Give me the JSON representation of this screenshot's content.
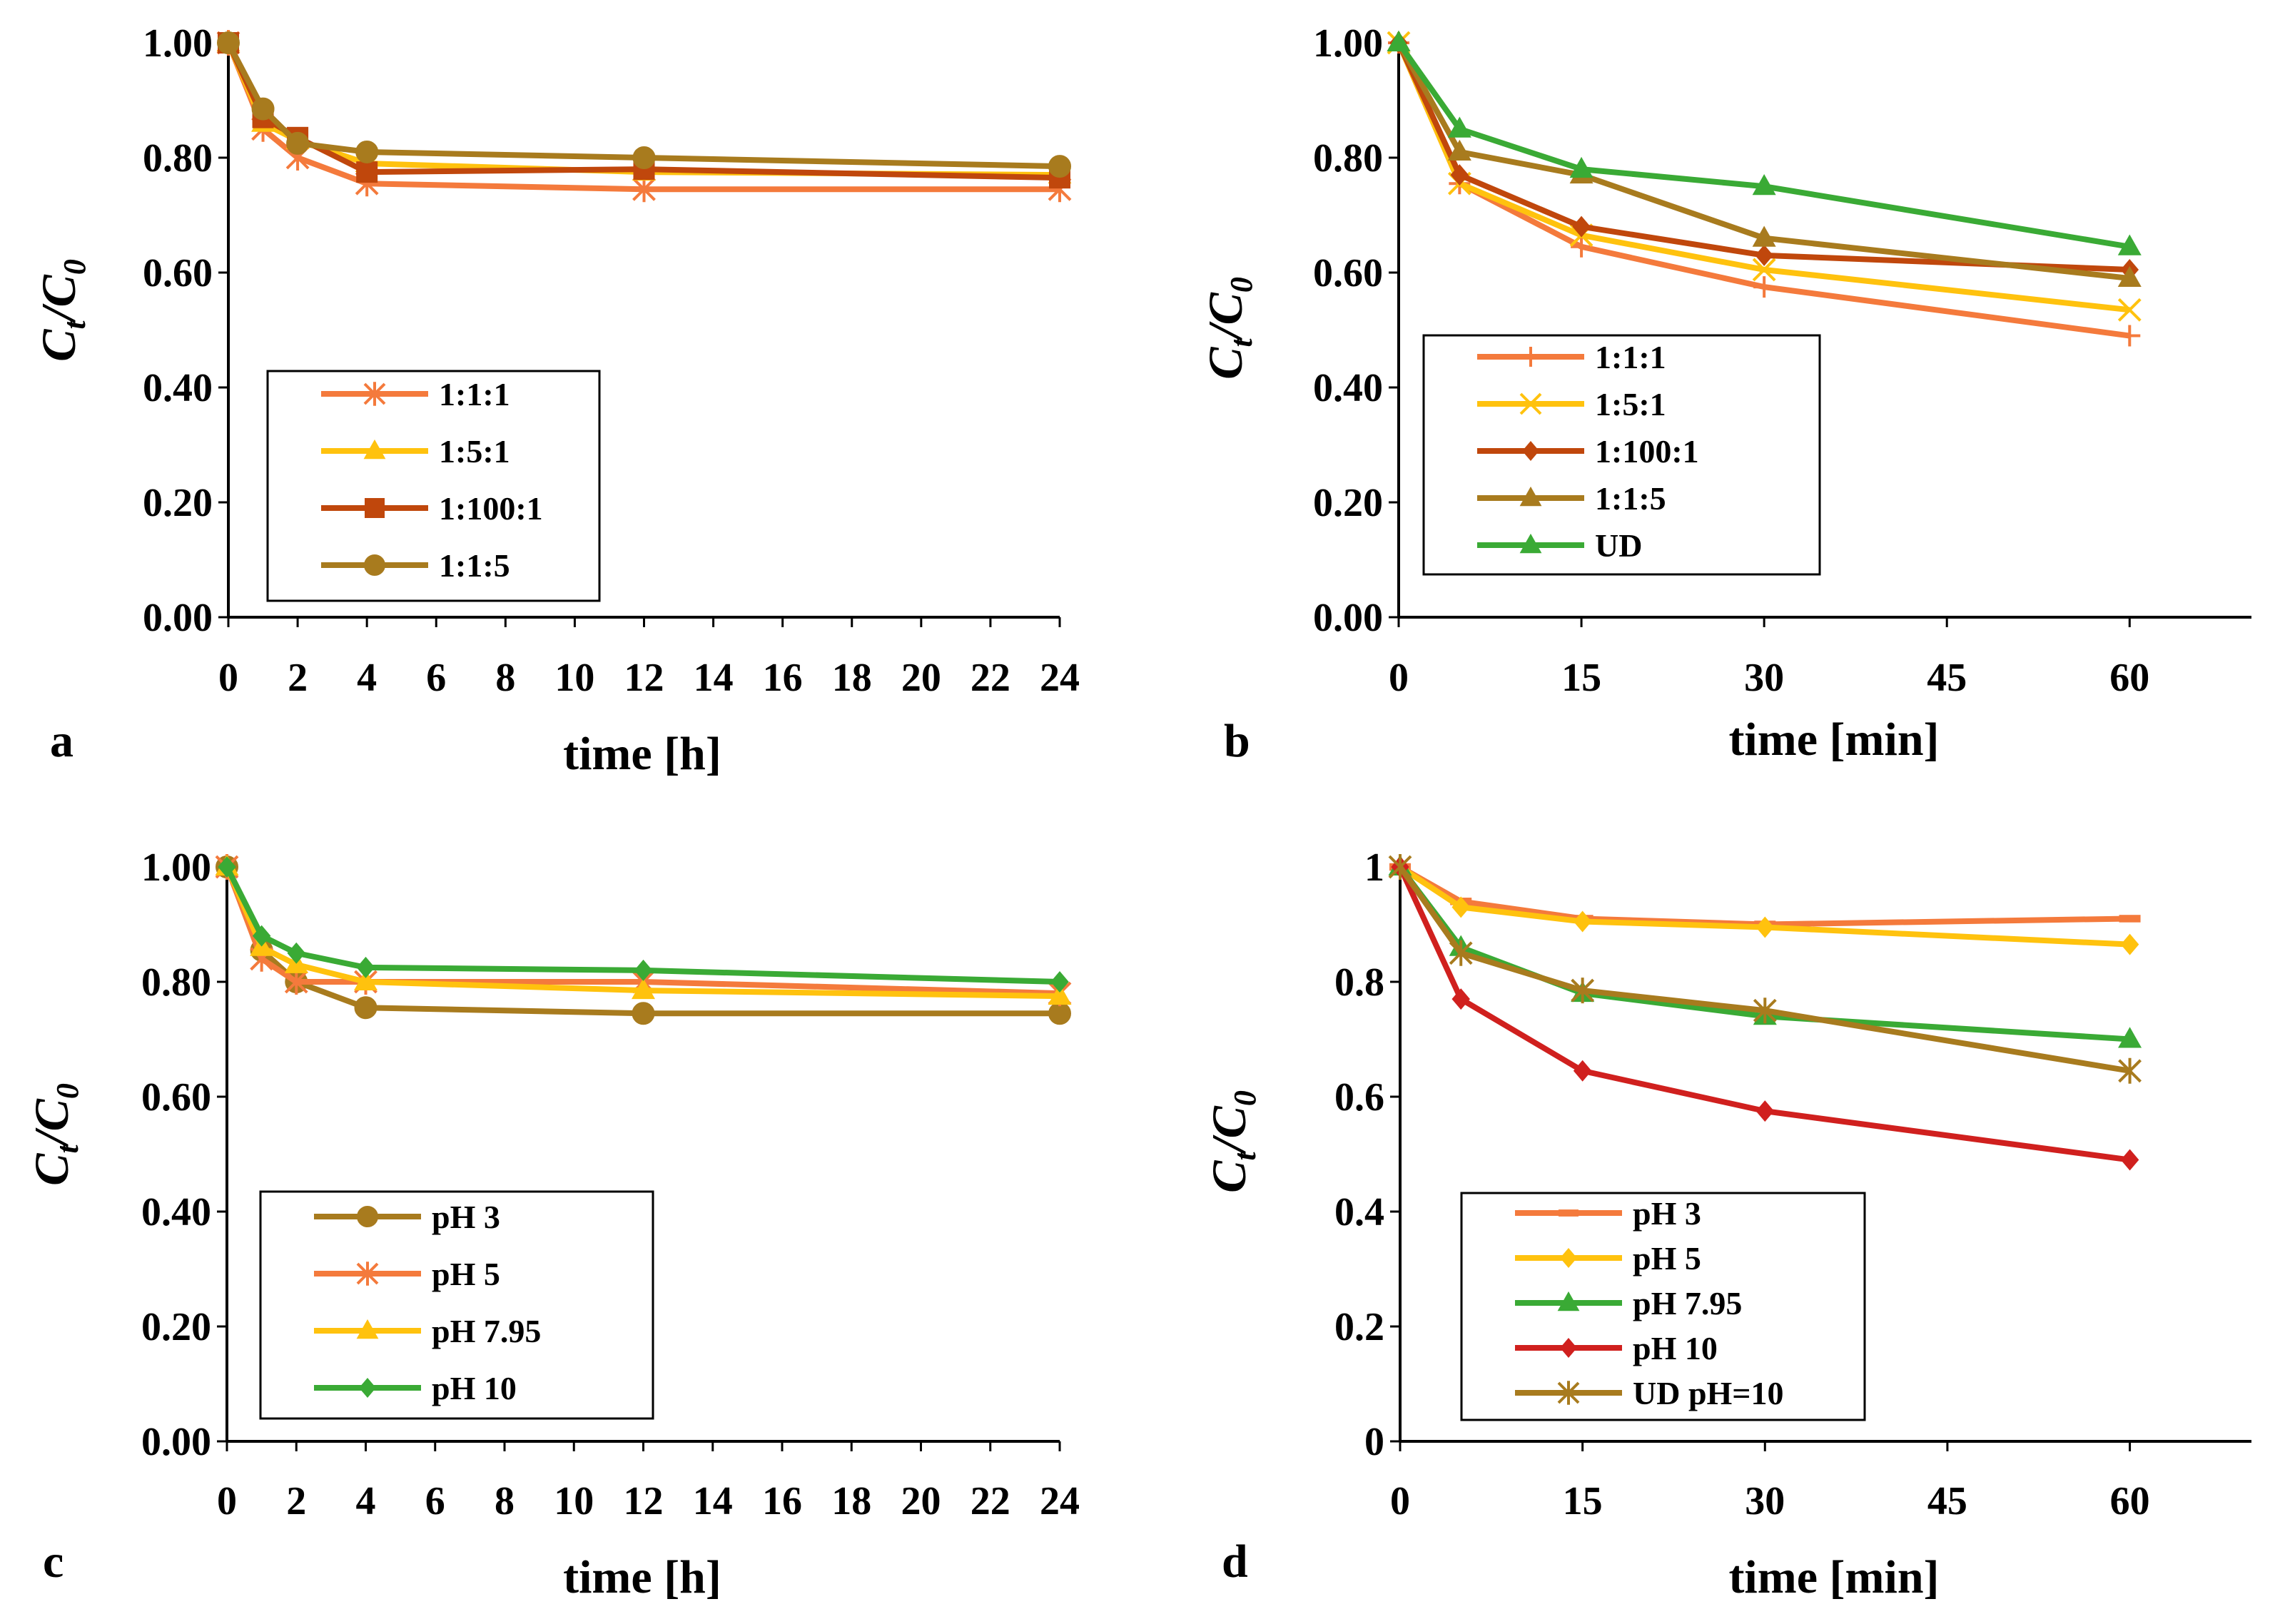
{
  "chart_data": [
    {
      "id": "a",
      "type": "line",
      "panel_label": "a",
      "xlabel": "time [h]",
      "ylabel": "C",
      "ylabel_t_sub": "t",
      "ylabel_den": "C",
      "ylabel_0_sub": "0",
      "xlim": [
        0,
        24
      ],
      "ylim": [
        0,
        1
      ],
      "xticks": [
        0,
        2,
        4,
        6,
        8,
        10,
        12,
        14,
        16,
        18,
        20,
        22,
        24
      ],
      "xtick_labels": [
        "0",
        "2",
        "4",
        "6",
        "8",
        "10",
        "12",
        "14",
        "16",
        "18",
        "20",
        "22",
        "24"
      ],
      "yticks": [
        0,
        0.2,
        0.4,
        0.6,
        0.8,
        1.0
      ],
      "ytick_labels": [
        "0.00",
        "0.20",
        "0.40",
        "0.60",
        "0.80",
        "1.00"
      ],
      "legend_position": "lower-left",
      "series": [
        {
          "name": "1:1:1",
          "color": "#f47a3c",
          "marker": "asterisk",
          "x": [
            0,
            1,
            2,
            4,
            12,
            24
          ],
          "values": [
            1.0,
            0.85,
            0.8,
            0.755,
            0.745,
            0.745
          ]
        },
        {
          "name": "1:5:1",
          "color": "#ffc20e",
          "marker": "triangle",
          "x": [
            0,
            1,
            2,
            4,
            12,
            24
          ],
          "values": [
            1.0,
            0.86,
            0.83,
            0.79,
            0.775,
            0.77
          ]
        },
        {
          "name": "1:100:1",
          "color": "#c0470c",
          "marker": "square",
          "x": [
            0,
            1,
            2,
            4,
            12,
            24
          ],
          "values": [
            1.0,
            0.87,
            0.835,
            0.775,
            0.78,
            0.765
          ]
        },
        {
          "name": "1:1:5",
          "color": "#a87b1e",
          "marker": "circle",
          "x": [
            0,
            1,
            2,
            4,
            12,
            24
          ],
          "values": [
            1.0,
            0.885,
            0.825,
            0.81,
            0.8,
            0.785
          ]
        }
      ]
    },
    {
      "id": "b",
      "type": "line",
      "panel_label": "b",
      "xlabel": "time [min]",
      "ylabel": "C",
      "ylabel_t_sub": "t",
      "ylabel_den": "C",
      "ylabel_0_sub": "0",
      "xlim": [
        0,
        70
      ],
      "ylim": [
        0,
        1
      ],
      "xticks": [
        0,
        15,
        30,
        45,
        60
      ],
      "xtick_labels": [
        "0",
        "15",
        "30",
        "45",
        "60"
      ],
      "yticks": [
        0,
        0.2,
        0.4,
        0.6,
        0.8,
        1.0
      ],
      "ytick_labels": [
        "0.00",
        "0.20",
        "0.40",
        "0.60",
        "0.80",
        "1.00"
      ],
      "legend_position": "lower-left",
      "series": [
        {
          "name": "1:1:1",
          "color": "#f47a3c",
          "marker": "plus",
          "x": [
            0,
            5,
            15,
            30,
            60
          ],
          "values": [
            1.0,
            0.755,
            0.645,
            0.575,
            0.49
          ]
        },
        {
          "name": "1:5:1",
          "color": "#ffc20e",
          "marker": "x",
          "x": [
            0,
            5,
            15,
            30,
            60
          ],
          "values": [
            1.0,
            0.755,
            0.665,
            0.605,
            0.535
          ]
        },
        {
          "name": "1:100:1",
          "color": "#c0470c",
          "marker": "diamond",
          "x": [
            0,
            5,
            15,
            30,
            60
          ],
          "values": [
            1.0,
            0.77,
            0.68,
            0.63,
            0.605
          ]
        },
        {
          "name": "1:1:5",
          "color": "#a87b1e",
          "marker": "triangle",
          "x": [
            0,
            5,
            15,
            30,
            60
          ],
          "values": [
            1.0,
            0.81,
            0.77,
            0.66,
            0.59
          ]
        },
        {
          "name": "UD",
          "color": "#3aaa35",
          "marker": "triangle",
          "x": [
            0,
            5,
            15,
            30,
            60
          ],
          "values": [
            1.0,
            0.85,
            0.78,
            0.75,
            0.645
          ]
        }
      ]
    },
    {
      "id": "c",
      "type": "line",
      "panel_label": "c",
      "xlabel": "time [h]",
      "ylabel": "C",
      "ylabel_t_sub": "t",
      "ylabel_den": "C",
      "ylabel_0_sub": "0",
      "xlim": [
        0,
        24
      ],
      "ylim": [
        0,
        1
      ],
      "xticks": [
        0,
        2,
        4,
        6,
        8,
        10,
        12,
        14,
        16,
        18,
        20,
        22,
        24
      ],
      "xtick_labels": [
        "0",
        "2",
        "4",
        "6",
        "8",
        "10",
        "12",
        "14",
        "16",
        "18",
        "20",
        "22",
        "24"
      ],
      "yticks": [
        0,
        0.2,
        0.4,
        0.6,
        0.8,
        1.0
      ],
      "ytick_labels": [
        "0.00",
        "0.20",
        "0.40",
        "0.60",
        "0.80",
        "1.00"
      ],
      "legend_position": "lower-left",
      "series": [
        {
          "name": "pH 3",
          "color": "#a87b1e",
          "marker": "circle",
          "x": [
            0,
            1,
            2,
            4,
            12,
            24
          ],
          "values": [
            1.0,
            0.855,
            0.8,
            0.755,
            0.745,
            0.745
          ]
        },
        {
          "name": "pH 5",
          "color": "#f47a3c",
          "marker": "asterisk",
          "x": [
            0,
            1,
            2,
            4,
            12,
            24
          ],
          "values": [
            1.0,
            0.84,
            0.8,
            0.8,
            0.8,
            0.78
          ]
        },
        {
          "name": "pH 7.95",
          "color": "#ffc20e",
          "marker": "triangle",
          "x": [
            0,
            1,
            2,
            4,
            12,
            24
          ],
          "values": [
            1.0,
            0.86,
            0.83,
            0.8,
            0.785,
            0.775
          ]
        },
        {
          "name": "pH 10",
          "color": "#3aaa35",
          "marker": "diamond",
          "x": [
            0,
            1,
            2,
            4,
            12,
            24
          ],
          "values": [
            1.0,
            0.88,
            0.85,
            0.825,
            0.82,
            0.8
          ]
        }
      ]
    },
    {
      "id": "d",
      "type": "line",
      "panel_label": "d",
      "xlabel": "time [min]",
      "ylabel": "C",
      "ylabel_t_sub": "t",
      "ylabel_den": "C",
      "ylabel_0_sub": "0",
      "xlim": [
        0,
        70
      ],
      "ylim": [
        0,
        1
      ],
      "xticks": [
        0,
        15,
        30,
        45,
        60
      ],
      "xtick_labels": [
        "0",
        "15",
        "30",
        "45",
        "60"
      ],
      "yticks": [
        0,
        0.2,
        0.4,
        0.6,
        0.8,
        1.0
      ],
      "ytick_labels": [
        "0",
        "0.2",
        "0.4",
        "0.6",
        "0.8",
        "1"
      ],
      "legend_position": "lower-left",
      "series": [
        {
          "name": "pH 3",
          "color": "#f47a3c",
          "marker": "dash",
          "x": [
            0,
            5,
            15,
            30,
            60
          ],
          "values": [
            1.0,
            0.94,
            0.91,
            0.9,
            0.91
          ]
        },
        {
          "name": "pH 5",
          "color": "#ffc20e",
          "marker": "diamond",
          "x": [
            0,
            5,
            15,
            30,
            60
          ],
          "values": [
            1.0,
            0.93,
            0.905,
            0.895,
            0.865
          ]
        },
        {
          "name": "pH 7.95",
          "color": "#3aaa35",
          "marker": "triangle",
          "x": [
            0,
            5,
            15,
            30,
            60
          ],
          "values": [
            1.0,
            0.86,
            0.78,
            0.74,
            0.7
          ]
        },
        {
          "name": "pH 10",
          "color": "#d0201e",
          "marker": "diamond",
          "x": [
            0,
            5,
            15,
            30,
            60
          ],
          "values": [
            1.0,
            0.77,
            0.645,
            0.575,
            0.49
          ]
        },
        {
          "name": "UD pH=10",
          "color": "#a87b1e",
          "marker": "asterisk",
          "x": [
            0,
            5,
            15,
            30,
            60
          ],
          "values": [
            1.0,
            0.85,
            0.785,
            0.75,
            0.645
          ]
        }
      ]
    }
  ]
}
